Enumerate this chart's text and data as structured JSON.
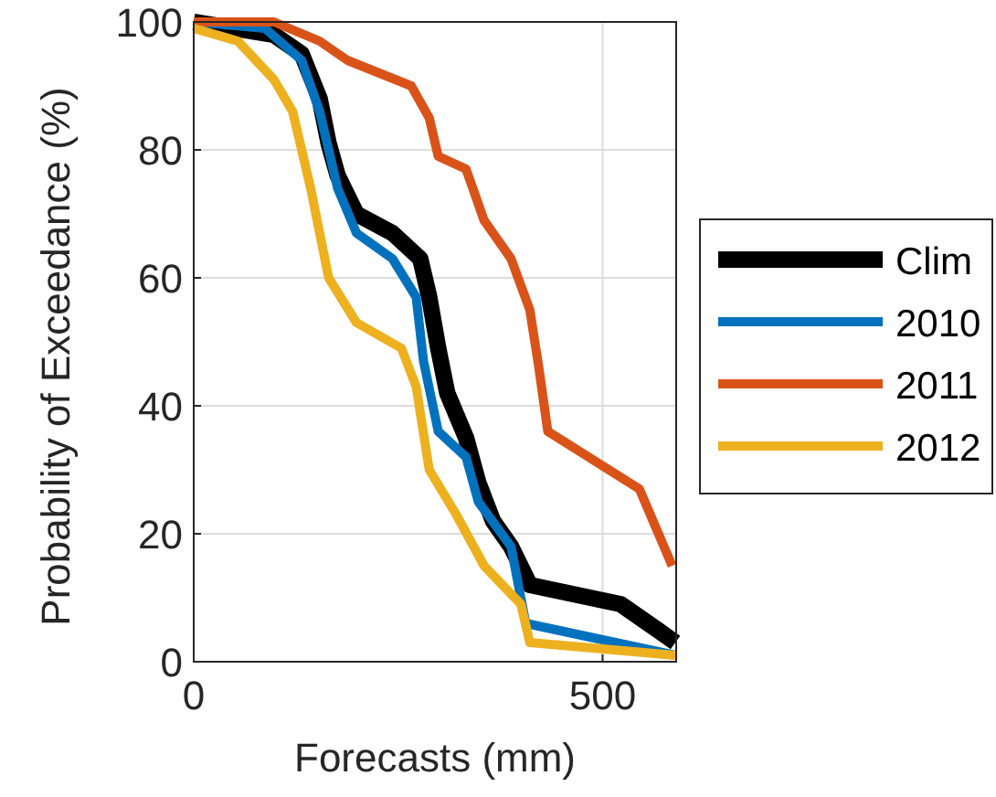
{
  "chart_data": {
    "type": "line",
    "xlabel": "Forecasts (mm)",
    "ylabel": "Probability of Exceedance (%)",
    "xlim": [
      0,
      590
    ],
    "ylim": [
      0,
      100
    ],
    "xticks": [
      0,
      500
    ],
    "yticks": [
      0,
      20,
      40,
      60,
      80,
      100
    ],
    "grid": true,
    "legend": "right",
    "line_style": "solid",
    "series": [
      {
        "name": "Clim",
        "color": "#000000",
        "x": [
          0,
          98,
          132,
          154,
          165,
          176,
          199,
          243,
          277,
          288,
          299,
          310,
          333,
          348,
          366,
          388,
          411,
          522,
          567,
          589
        ],
        "values": [
          100,
          98,
          95,
          88,
          81,
          76,
          70,
          67,
          63,
          57,
          49,
          42,
          35,
          28,
          22,
          18,
          12,
          9,
          5,
          3
        ]
      },
      {
        "name": "2010",
        "color": "#0072bd",
        "x": [
          0,
          87,
          132,
          154,
          176,
          199,
          243,
          272,
          281,
          299,
          333,
          348,
          388,
          406,
          589
        ],
        "values": [
          100,
          99,
          94,
          86,
          74,
          67,
          63,
          57,
          47,
          36,
          32,
          25,
          18,
          6,
          1
        ]
      },
      {
        "name": "2011",
        "color": "#d95319",
        "x": [
          0,
          98,
          154,
          188,
          266,
          288,
          299,
          333,
          355,
          388,
          411,
          422,
          433,
          545,
          585
        ],
        "values": [
          100,
          100,
          97,
          94,
          90,
          85,
          79,
          77,
          69,
          63,
          55,
          46,
          36,
          27,
          15
        ]
      },
      {
        "name": "2012",
        "color": "#edb120",
        "x": [
          0,
          54,
          98,
          121,
          143,
          165,
          199,
          254,
          272,
          288,
          321,
          355,
          400,
          411,
          589
        ],
        "values": [
          99,
          97,
          91,
          86,
          74,
          60,
          53,
          49,
          43,
          30,
          23,
          15,
          9,
          3,
          1
        ]
      }
    ]
  }
}
